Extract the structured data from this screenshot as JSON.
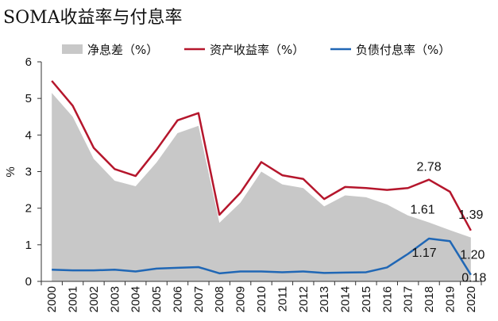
{
  "title": "SOMA收益率与付息率",
  "chart_data": {
    "type": "line",
    "title": "SOMA收益率与付息率",
    "ylabel": "%",
    "xlabel": "",
    "ylim": [
      0,
      6
    ],
    "yticks": [
      "0",
      "1",
      "2",
      "3",
      "4",
      "5",
      "6"
    ],
    "categories": [
      "2000",
      "2001",
      "2002",
      "2003",
      "2004",
      "2005",
      "2006",
      "2007",
      "2008",
      "2009",
      "2010",
      "2011",
      "2012",
      "2013",
      "2014",
      "2015",
      "2016",
      "2017",
      "2018",
      "2019",
      "2020"
    ],
    "grid": false,
    "legend_position": "top",
    "series": [
      {
        "name": "净息差（%）",
        "kind": "area",
        "color": "#c8c8c8",
        "values": [
          5.15,
          4.5,
          3.35,
          2.75,
          2.6,
          3.25,
          4.05,
          4.25,
          1.6,
          2.15,
          3.0,
          2.65,
          2.55,
          2.05,
          2.35,
          2.3,
          2.1,
          1.8,
          1.61,
          1.4,
          1.2
        ]
      },
      {
        "name": "资产收益率（%）",
        "kind": "line",
        "color": "#b5162c",
        "values": [
          5.48,
          4.8,
          3.65,
          3.07,
          2.88,
          3.6,
          4.4,
          4.6,
          1.82,
          2.42,
          3.26,
          2.9,
          2.8,
          2.25,
          2.58,
          2.55,
          2.5,
          2.55,
          2.78,
          2.45,
          1.39
        ]
      },
      {
        "name": "负债付息率（%）",
        "kind": "line",
        "color": "#2067b5",
        "values": [
          0.32,
          0.3,
          0.3,
          0.32,
          0.27,
          0.35,
          0.37,
          0.39,
          0.22,
          0.27,
          0.27,
          0.25,
          0.27,
          0.23,
          0.24,
          0.25,
          0.38,
          0.75,
          1.17,
          1.1,
          0.18
        ]
      }
    ],
    "annotations": [
      {
        "text": "2.78",
        "category": "2018",
        "value": 2.78
      },
      {
        "text": "1.61",
        "category": "2018",
        "value": 1.61
      },
      {
        "text": "1.17",
        "category": "2018",
        "value": 1.17
      },
      {
        "text": "1.39",
        "category": "2020",
        "value": 1.39
      },
      {
        "text": "1.20",
        "category": "2020",
        "value": 1.2
      },
      {
        "text": "0.18",
        "category": "2020",
        "value": 0.18
      }
    ]
  }
}
